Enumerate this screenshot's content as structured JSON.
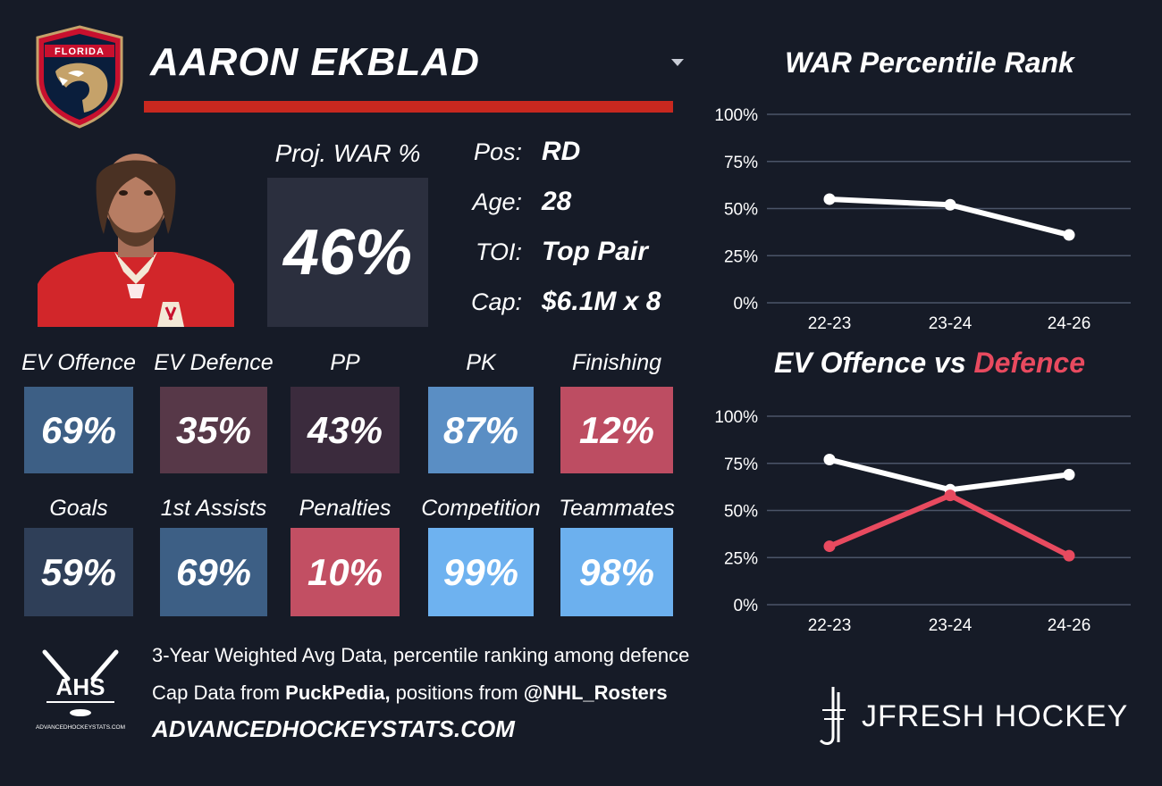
{
  "player": {
    "name": "AARON EKBLAD",
    "team_logo_text": "FLORIDA",
    "proj_war_label": "Proj. WAR %",
    "proj_war_value": "46%",
    "info": [
      {
        "label": "Pos:",
        "value": "RD"
      },
      {
        "label": "Age:",
        "value": "28"
      },
      {
        "label": "TOI:",
        "value": "Top Pair"
      },
      {
        "label": "Cap:",
        "value": "$6.1M x 8"
      }
    ]
  },
  "stats": [
    {
      "label": "EV Offence",
      "value": "69%",
      "color": "#3d5f85"
    },
    {
      "label": "EV Defence",
      "value": "35%",
      "color": "#573848"
    },
    {
      "label": "PP",
      "value": "43%",
      "color": "#3b2b3d"
    },
    {
      "label": "PK",
      "value": "87%",
      "color": "#5a8ec4"
    },
    {
      "label": "Finishing",
      "value": "12%",
      "color": "#bd4d62"
    },
    {
      "label": "Goals",
      "value": "59%",
      "color": "#2f3f58"
    },
    {
      "label": "1st Assists",
      "value": "69%",
      "color": "#3d5f85"
    },
    {
      "label": "Penalties",
      "value": "10%",
      "color": "#c24f63"
    },
    {
      "label": "Competition",
      "value": "99%",
      "color": "#6eb2f0"
    },
    {
      "label": "Teammates",
      "value": "98%",
      "color": "#6cb0ee"
    }
  ],
  "footer": {
    "ahs_logo_text": "AHS",
    "ahs_logo_subtext": "ADVANCEDHOCKEYSTATS.COM",
    "note_line1": "3-Year Weighted Avg Data, percentile ranking among defence",
    "note_line2_prefix": "Cap Data from ",
    "note_line2_bold1": "PuckPedia,",
    "note_line2_mid": " positions from ",
    "note_line2_bold2": "@NHL_Rosters",
    "site": "ADVANCEDHOCKEYSTATS.COM",
    "brand": "JFRESH HOCKEY"
  },
  "colors": {
    "background": "#161b27",
    "accent_red": "#c8281f",
    "defence_red": "#e84a5f",
    "grid": "#4b5468"
  },
  "chart_data": [
    {
      "type": "line",
      "title": "WAR Percentile Rank",
      "categories": [
        "22-23",
        "23-24",
        "24-26"
      ],
      "series": [
        {
          "values": [
            55,
            52,
            36
          ],
          "color": "#ffffff"
        }
      ],
      "yticks": [
        "100%",
        "75%",
        "50%",
        "25%",
        "0%"
      ],
      "ylim": [
        0,
        100
      ],
      "grid": true
    },
    {
      "type": "line",
      "title_part1": "EV Offence vs ",
      "title_part2": "Defence",
      "categories": [
        "22-23",
        "23-24",
        "24-26"
      ],
      "series": [
        {
          "values": [
            77,
            61,
            69
          ],
          "color": "#ffffff"
        },
        {
          "values": [
            31,
            58,
            26
          ],
          "color": "#e84a5f"
        }
      ],
      "yticks": [
        "100%",
        "75%",
        "50%",
        "25%",
        "0%"
      ],
      "ylim": [
        0,
        100
      ],
      "grid": true
    }
  ]
}
